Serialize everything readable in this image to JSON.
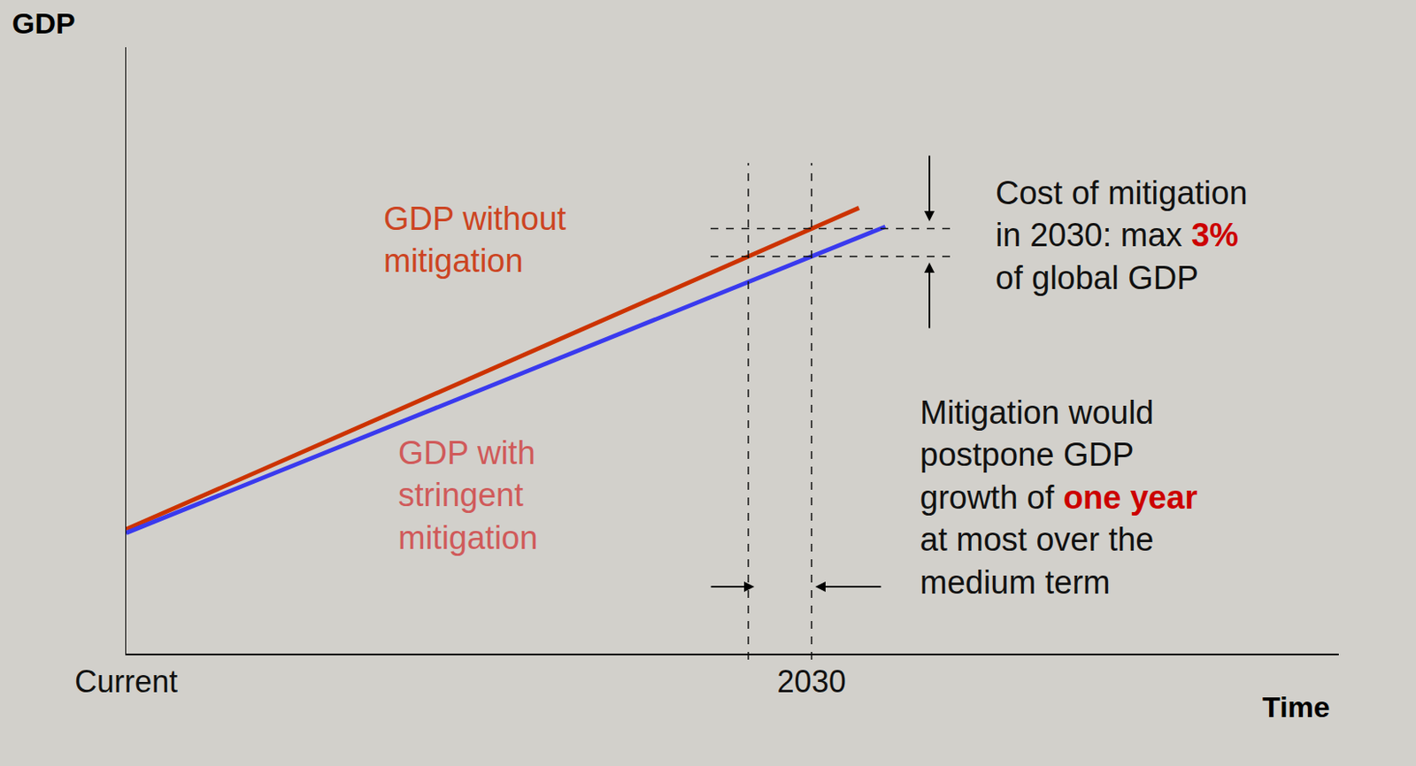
{
  "chart_data": {
    "type": "line",
    "x_label": "Time",
    "y_label": "GDP",
    "series": [
      {
        "name": "GDP without\nmitigation",
        "color": "#cc3300",
        "x": [
          2017,
          2030.9
        ],
        "values": [
          20.5,
          73.5
        ]
      },
      {
        "name": "GDP with\nstringent\nmitigation",
        "color": "#3a3aee",
        "x": [
          2017,
          2031.4
        ],
        "values": [
          19.9,
          70.4
        ]
      }
    ],
    "xlim": [
      2017,
      2040
    ],
    "xticks": [
      {
        "value": 2017,
        "label": "Current"
      },
      2030
    ],
    "ylim": [
      0,
      100
    ],
    "yticks": [],
    "tick_labels": "x",
    "grid": false,
    "reference_lines": {
      "x": [
        2028.8,
        2030
      ],
      "y": [
        70.1,
        65.5
      ]
    },
    "annotations": [
      {
        "text": "Cost of mitigation\nin 2030: max 3%\nof global GDP",
        "highlight": "3%"
      },
      {
        "text": "Mitigation would\npostpone GDP\ngrowth of one year\nat most over the\nmedium term",
        "highlight": "one year"
      }
    ]
  }
}
